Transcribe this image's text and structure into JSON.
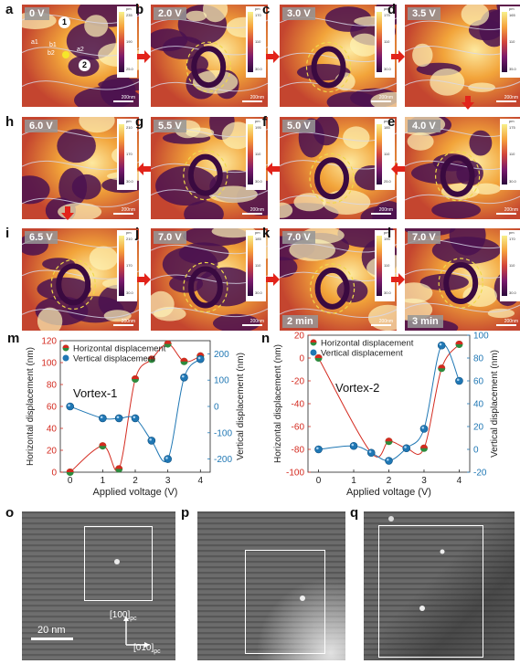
{
  "panels": [
    {
      "id": "a",
      "voltage": "0 V",
      "time": "",
      "cbar": [
        "235",
        "190",
        "25.0"
      ],
      "scale": "200nm"
    },
    {
      "id": "b",
      "voltage": "2.0 V",
      "time": "",
      "cbar": [
        "170",
        "110",
        "30.0"
      ],
      "scale": "200nm"
    },
    {
      "id": "c",
      "voltage": "3.0 V",
      "time": "",
      "cbar": [
        "175",
        "110",
        "30.0"
      ],
      "scale": "200nm"
    },
    {
      "id": "d",
      "voltage": "3.5 V",
      "time": "",
      "cbar": [
        "165",
        "110",
        "35.0"
      ],
      "scale": "200nm"
    },
    {
      "id": "h",
      "voltage": "6.0 V",
      "time": "",
      "cbar": [
        "210",
        "170",
        "30.0"
      ],
      "scale": "200nm"
    },
    {
      "id": "g",
      "voltage": "5.5 V",
      "time": "",
      "cbar": [
        "195",
        "110",
        "30.0"
      ],
      "scale": "200nm"
    },
    {
      "id": "f",
      "voltage": "5.0 V",
      "time": "",
      "cbar": [
        "185",
        "110",
        "25.0"
      ],
      "scale": "200nm"
    },
    {
      "id": "e",
      "voltage": "4.0 V",
      "time": "",
      "cbar": [
        "175",
        "110",
        "30.0"
      ],
      "scale": "200nm"
    },
    {
      "id": "i",
      "voltage": "6.5 V",
      "time": "",
      "cbar": [
        "210",
        "170",
        "30.0"
      ],
      "scale": "200nm"
    },
    {
      "id": "j",
      "voltage": "7.0 V",
      "time": "",
      "cbar": [
        "185",
        "110",
        "30.0"
      ],
      "scale": "200nm"
    },
    {
      "id": "k",
      "voltage": "7.0 V",
      "time": "2 min",
      "cbar": [
        "195",
        "110",
        "30.0"
      ],
      "scale": "200nm"
    },
    {
      "id": "l",
      "voltage": "7.0 V",
      "time": "3 min",
      "cbar": [
        "170",
        "110",
        "30.0"
      ],
      "scale": "200nm"
    }
  ],
  "panel_a_markers": {
    "m1": "1",
    "m2": "2",
    "a1": "a1",
    "a2": "a2",
    "b1": "b1",
    "b2": "b2"
  },
  "cbar_unit": "pm",
  "chart_data": [
    {
      "panel": "m",
      "type": "scatter",
      "title": "Vortex-1",
      "xlabel": "Applied voltage (V)",
      "ylabel": "Horizontal displacement (nm)",
      "y2label": "Vertical displacement (nm)",
      "xlim": [
        -0.3,
        4.3
      ],
      "ylim": [
        0,
        120
      ],
      "y2lim": [
        -250,
        250
      ],
      "xticks": [
        0,
        1,
        2,
        3,
        4
      ],
      "yticks": [
        0,
        20,
        40,
        60,
        80,
        100,
        120
      ],
      "y2ticks": [
        -200,
        -100,
        0,
        100,
        200
      ],
      "legend_position": "top-left",
      "series": [
        {
          "name": "Horizontal displacement",
          "axis": "left",
          "color": "#d42a1f",
          "x": [
            0,
            1,
            1.5,
            2,
            2.5,
            3,
            3.5,
            4
          ],
          "y": [
            0,
            24,
            3,
            85,
            103,
            117,
            101,
            106
          ]
        },
        {
          "name": "Vertical displacement",
          "axis": "right",
          "color": "#1f77b4",
          "x": [
            0,
            1,
            1.5,
            2,
            2.5,
            3,
            3.5,
            4
          ],
          "y": [
            0,
            -45,
            -45,
            -45,
            -130,
            -200,
            110,
            180
          ]
        }
      ]
    },
    {
      "panel": "n",
      "type": "scatter",
      "title": "Vortex-2",
      "xlabel": "Applied voltage (V)",
      "ylabel": "Horizontal displacement (nm)",
      "y2label": "Vertical displacement (nm)",
      "xlim": [
        -0.3,
        4.3
      ],
      "ylim": [
        -100,
        20
      ],
      "y2lim": [
        -20,
        100
      ],
      "xticks": [
        0,
        1,
        2,
        3,
        4
      ],
      "yticks": [
        -100,
        -80,
        -60,
        -40,
        -20,
        0,
        20
      ],
      "y2ticks": [
        -20,
        0,
        20,
        40,
        60,
        80,
        100
      ],
      "legend_position": "top-left",
      "series": [
        {
          "name": "Horizontal displacement",
          "axis": "left",
          "color": "#d42a1f",
          "x": [
            0,
            1.5,
            2,
            2.5,
            3,
            3.5,
            4
          ],
          "y": [
            0,
            -83,
            -73,
            -79,
            -79,
            -9,
            12
          ]
        },
        {
          "name": "Vertical displacement",
          "axis": "right",
          "color": "#1f77b4",
          "x": [
            0,
            1,
            1.5,
            2,
            2.5,
            3,
            3.5,
            4
          ],
          "y": [
            0,
            3,
            -3,
            -10,
            1,
            18,
            91,
            60
          ]
        }
      ]
    }
  ],
  "sem": {
    "panels": [
      "o",
      "p",
      "q"
    ],
    "scale_label": "20 nm",
    "dir1": "[100]",
    "dir2": "[010]",
    "pc": "pc"
  }
}
